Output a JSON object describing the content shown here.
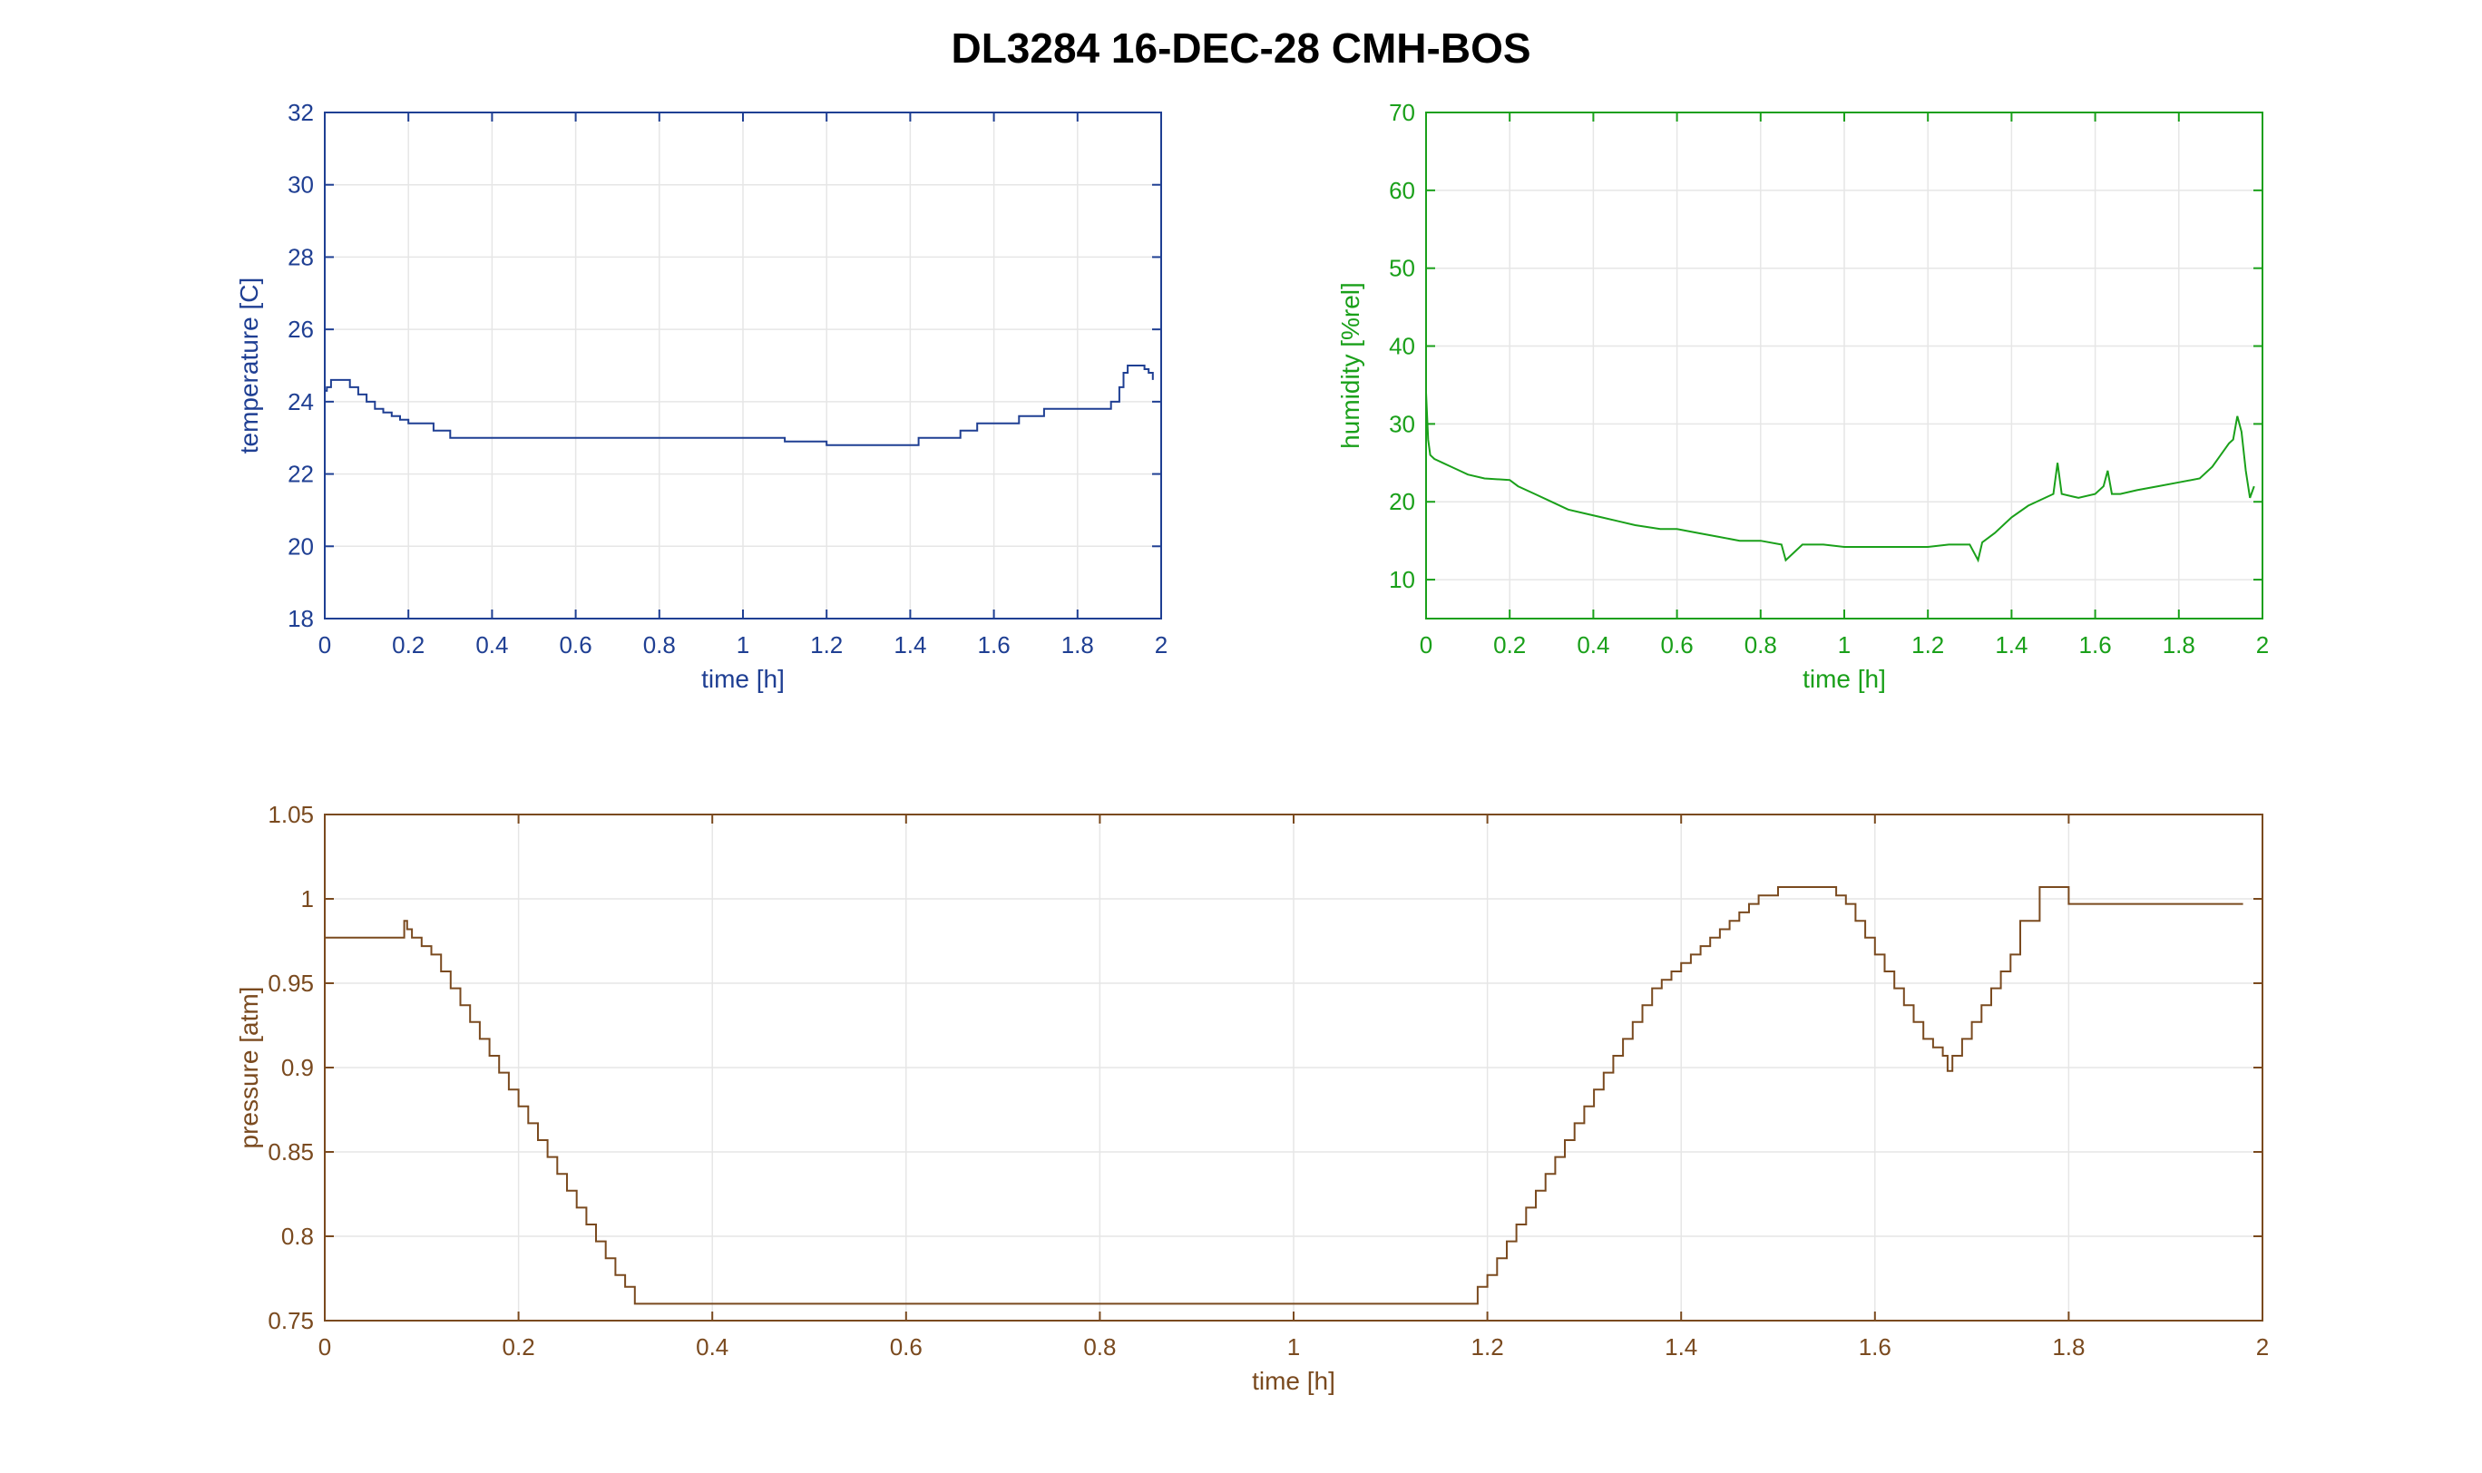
{
  "figure": {
    "title": "DL3284 16-DEC-28 CMH-BOS"
  },
  "chart_data": [
    {
      "id": "temperature",
      "type": "line",
      "color": "#1f3f93",
      "grid": true,
      "xlabel": "time [h]",
      "ylabel": "temperature [C]",
      "xlim": [
        0,
        2
      ],
      "ylim": [
        18,
        32
      ],
      "xticks": [
        "0",
        "0.2",
        "0.4",
        "0.6",
        "0.8",
        "1",
        "1.2",
        "1.4",
        "1.6",
        "1.8",
        "2"
      ],
      "yticks": [
        "18",
        "20",
        "22",
        "24",
        "26",
        "28",
        "30",
        "32"
      ],
      "step": true,
      "series": [
        {
          "x": [
            0,
            0.005,
            0.015,
            0.06,
            0.08,
            0.1,
            0.12,
            0.14,
            0.16,
            0.18,
            0.2,
            0.22,
            0.26,
            0.3,
            0.5,
            0.7,
            0.9,
            1.1,
            1.12,
            1.14,
            1.16,
            1.18,
            1.2,
            1.3,
            1.42,
            1.48,
            1.52,
            1.56,
            1.6,
            1.66,
            1.72,
            1.8,
            1.86,
            1.88,
            1.9,
            1.91,
            1.92,
            1.93,
            1.95,
            1.96,
            1.97,
            1.98
          ],
          "y": [
            24.3,
            24.4,
            24.6,
            24.4,
            24.2,
            24.0,
            23.8,
            23.7,
            23.6,
            23.5,
            23.4,
            23.4,
            23.2,
            23.0,
            23.0,
            23.0,
            23.0,
            22.9,
            22.9,
            22.9,
            22.9,
            22.9,
            22.8,
            22.8,
            23.0,
            23.0,
            23.2,
            23.4,
            23.4,
            23.6,
            23.8,
            23.8,
            23.8,
            24.0,
            24.4,
            24.8,
            25.0,
            25.0,
            25.0,
            24.9,
            24.8,
            24.6
          ]
        }
      ]
    },
    {
      "id": "humidity",
      "type": "line",
      "color": "#1aa01a",
      "grid": true,
      "xlabel": "time [h]",
      "ylabel": "humidity [%rel]",
      "xlim": [
        0,
        2
      ],
      "ylim": [
        5,
        70
      ],
      "xticks": [
        "0",
        "0.2",
        "0.4",
        "0.6",
        "0.8",
        "1",
        "1.2",
        "1.4",
        "1.6",
        "1.8",
        "2"
      ],
      "yticks": [
        "10",
        "20",
        "30",
        "40",
        "50",
        "60",
        "70"
      ],
      "step": false,
      "series": [
        {
          "x": [
            0,
            0.005,
            0.01,
            0.02,
            0.04,
            0.06,
            0.08,
            0.1,
            0.14,
            0.2,
            0.22,
            0.26,
            0.3,
            0.34,
            0.38,
            0.42,
            0.46,
            0.5,
            0.56,
            0.6,
            0.65,
            0.7,
            0.75,
            0.8,
            0.85,
            0.86,
            0.9,
            0.95,
            1.0,
            1.05,
            1.1,
            1.15,
            1.2,
            1.25,
            1.3,
            1.32,
            1.33,
            1.36,
            1.4,
            1.44,
            1.48,
            1.5,
            1.51,
            1.52,
            1.56,
            1.6,
            1.62,
            1.63,
            1.64,
            1.66,
            1.7,
            1.75,
            1.8,
            1.85,
            1.88,
            1.9,
            1.92,
            1.93,
            1.94,
            1.95,
            1.96,
            1.97,
            1.98
          ],
          "y": [
            34,
            28,
            26,
            25.5,
            25,
            24.5,
            24,
            23.5,
            23,
            22.8,
            22,
            21,
            20,
            19,
            18.5,
            18,
            17.5,
            17,
            16.5,
            16.5,
            16,
            15.5,
            15,
            15,
            14.5,
            12.5,
            14.5,
            14.5,
            14.2,
            14.2,
            14.2,
            14.2,
            14.2,
            14.5,
            14.5,
            12.5,
            14.8,
            16,
            18,
            19.5,
            20.5,
            21,
            25,
            21,
            20.5,
            21,
            22,
            24,
            21,
            21,
            21.5,
            22,
            22.5,
            23,
            24.5,
            26,
            27.5,
            28,
            31,
            29,
            24,
            20.5,
            22
          ]
        }
      ]
    },
    {
      "id": "pressure",
      "type": "line",
      "color": "#7a4a1f",
      "grid": true,
      "xlabel": "time [h]",
      "ylabel": "pressure [atm]",
      "xlim": [
        0,
        2
      ],
      "ylim": [
        0.75,
        1.05
      ],
      "xticks": [
        "0",
        "0.2",
        "0.4",
        "0.6",
        "0.8",
        "1",
        "1.2",
        "1.4",
        "1.6",
        "1.8",
        "2"
      ],
      "yticks": [
        "0.75",
        "0.8",
        "0.85",
        "0.9",
        "0.95",
        "1",
        "1.05"
      ],
      "step": true,
      "series": [
        {
          "x": [
            0,
            0.08,
            0.082,
            0.085,
            0.09,
            0.1,
            0.11,
            0.12,
            0.13,
            0.14,
            0.15,
            0.16,
            0.17,
            0.18,
            0.19,
            0.2,
            0.21,
            0.22,
            0.23,
            0.24,
            0.25,
            0.26,
            0.27,
            0.28,
            0.29,
            0.3,
            0.31,
            0.32,
            0.333,
            1.19,
            1.2,
            1.21,
            1.22,
            1.23,
            1.24,
            1.25,
            1.26,
            1.27,
            1.28,
            1.29,
            1.3,
            1.31,
            1.32,
            1.33,
            1.34,
            1.35,
            1.36,
            1.37,
            1.38,
            1.39,
            1.4,
            1.41,
            1.42,
            1.43,
            1.44,
            1.45,
            1.46,
            1.47,
            1.48,
            1.5,
            1.52,
            1.54,
            1.56,
            1.57,
            1.58,
            1.59,
            1.6,
            1.61,
            1.62,
            1.63,
            1.64,
            1.65,
            1.66,
            1.67,
            1.675,
            1.68,
            1.69,
            1.7,
            1.71,
            1.72,
            1.73,
            1.74,
            1.75,
            1.77,
            1.78,
            1.8,
            1.9,
            1.98
          ],
          "y": [
            0.977,
            0.977,
            0.987,
            0.982,
            0.977,
            0.972,
            0.967,
            0.957,
            0.947,
            0.937,
            0.927,
            0.917,
            0.907,
            0.897,
            0.887,
            0.877,
            0.867,
            0.857,
            0.847,
            0.837,
            0.827,
            0.817,
            0.807,
            0.797,
            0.787,
            0.777,
            0.77,
            0.76,
            0.76,
            0.77,
            0.777,
            0.787,
            0.797,
            0.807,
            0.817,
            0.827,
            0.837,
            0.847,
            0.857,
            0.867,
            0.877,
            0.887,
            0.897,
            0.907,
            0.917,
            0.927,
            0.937,
            0.947,
            0.952,
            0.957,
            0.962,
            0.967,
            0.972,
            0.977,
            0.982,
            0.987,
            0.992,
            0.997,
            1.002,
            1.007,
            1.007,
            1.007,
            1.002,
            0.997,
            0.987,
            0.977,
            0.967,
            0.957,
            0.947,
            0.937,
            0.927,
            0.917,
            0.912,
            0.907,
            0.898,
            0.907,
            0.917,
            0.927,
            0.937,
            0.947,
            0.957,
            0.967,
            0.987,
            1.007,
            1.007,
            0.997,
            0.997,
            0.997
          ]
        }
      ]
    }
  ]
}
